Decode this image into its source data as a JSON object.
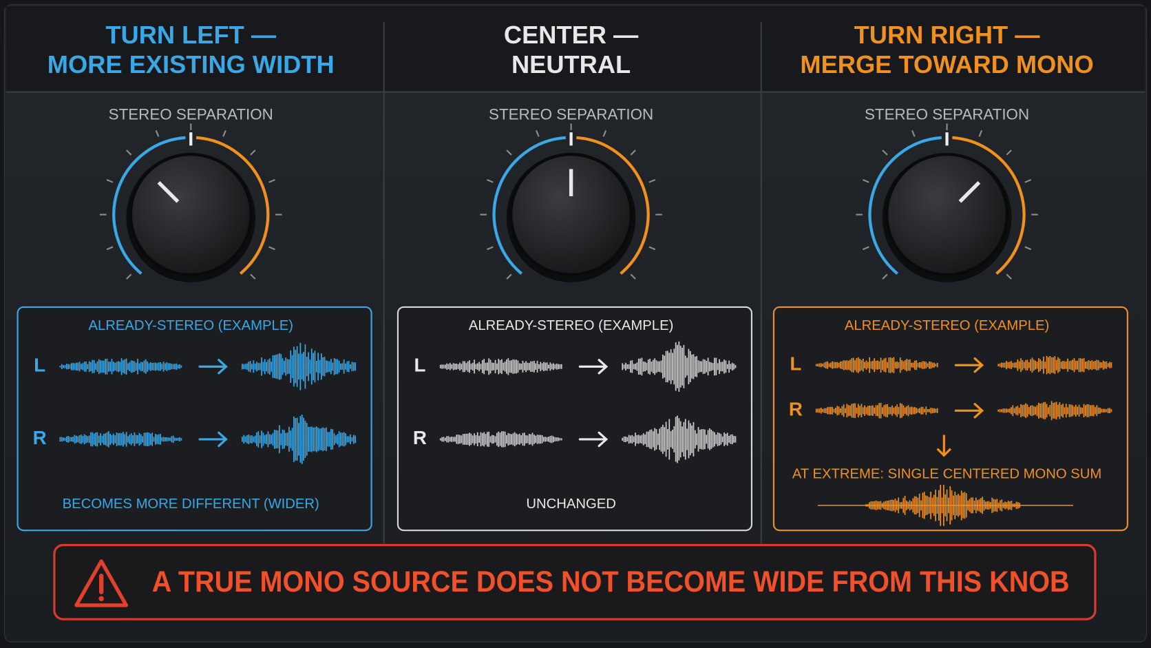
{
  "panels": [
    {
      "title": [
        "TURN LEFT —",
        "MORE EXISTING WIDTH"
      ],
      "knob_label": "STEREO SEPARATION",
      "box_title": "ALREADY-STEREO (EXAMPLE)",
      "left": "L",
      "right": "R",
      "caption": "BECOMES MORE DIFFERENT (WIDER)"
    },
    {
      "title": [
        "CENTER —",
        "NEUTRAL"
      ],
      "knob_label": "STEREO SEPARATION",
      "box_title": "ALREADY-STEREO (EXAMPLE)",
      "left": "L",
      "right": "R",
      "caption": "UNCHANGED"
    },
    {
      "title": [
        "TURN RIGHT —",
        "MERGE TOWARD MONO"
      ],
      "knob_label": "STEREO SEPARATION",
      "box_title": "ALREADY-STEREO (EXAMPLE)",
      "left": "L",
      "right": "R",
      "caption": "AT EXTREME: SINGLE CENTERED MONO SUM"
    }
  ],
  "warning": "A TRUE MONO SOURCE DOES NOT BECOME WIDE FROM THIS KNOB"
}
